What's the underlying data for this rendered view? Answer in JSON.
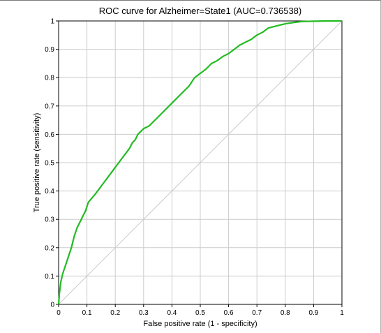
{
  "chart_data": {
    "type": "line",
    "title": "ROC curve for Alzheimer=State1 (AUC=0.736538)",
    "xlabel": "False positive rate (1 - specificity)",
    "ylabel": "True positive rate (sensitivity)",
    "xlim": [
      0,
      1
    ],
    "ylim": [
      0,
      1
    ],
    "xticks": [
      "0",
      "0.1",
      "0.2",
      "0.3",
      "0.4",
      "0.5",
      "0.6",
      "0.7",
      "0.8",
      "0.9",
      "1"
    ],
    "yticks": [
      "0",
      "0.1",
      "0.2",
      "0.3",
      "0.4",
      "0.5",
      "0.6",
      "0.7",
      "0.8",
      "0.9",
      "1"
    ],
    "grid": true,
    "colors": {
      "roc": "#22bb22",
      "diagonal": "#cccccc",
      "grid": "#cccccc"
    },
    "series": [
      {
        "x": [
          0,
          0.003,
          0.008,
          0.015,
          0.025,
          0.035,
          0.045,
          0.055,
          0.065,
          0.075,
          0.085,
          0.095,
          0.105,
          0.13,
          0.16,
          0.19,
          0.22,
          0.25,
          0.26,
          0.27,
          0.28,
          0.29,
          0.3,
          0.31,
          0.32,
          0.36,
          0.4,
          0.44,
          0.46,
          0.48,
          0.5,
          0.52,
          0.54,
          0.56,
          0.58,
          0.6,
          0.62,
          0.64,
          0.66,
          0.68,
          0.7,
          0.72,
          0.74,
          0.76,
          0.78,
          0.8,
          0.82,
          0.84,
          0.86,
          0.9,
          0.95,
          1.0
        ],
        "y": [
          0,
          0.04,
          0.08,
          0.11,
          0.14,
          0.17,
          0.2,
          0.24,
          0.27,
          0.29,
          0.31,
          0.33,
          0.36,
          0.39,
          0.43,
          0.47,
          0.51,
          0.55,
          0.57,
          0.58,
          0.6,
          0.61,
          0.62,
          0.625,
          0.63,
          0.67,
          0.71,
          0.75,
          0.77,
          0.8,
          0.815,
          0.83,
          0.85,
          0.86,
          0.875,
          0.885,
          0.9,
          0.915,
          0.925,
          0.935,
          0.95,
          0.96,
          0.975,
          0.98,
          0.985,
          0.99,
          0.993,
          0.996,
          0.998,
          0.999,
          1.0,
          1.0
        ]
      }
    ]
  }
}
